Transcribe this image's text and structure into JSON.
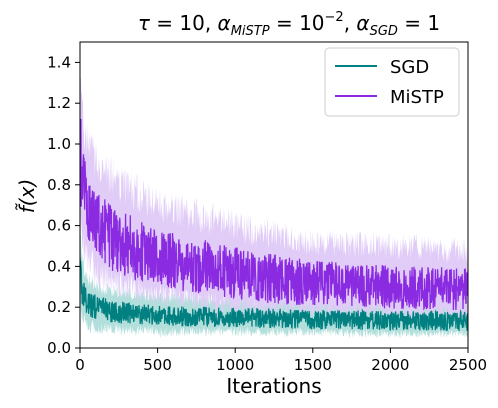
{
  "chart_data": {
    "type": "line",
    "title": "τ = 10, α_MiSTP = 10^−2, α_SGD = 1",
    "title_parts": {
      "tau": "τ",
      "eq": " = 10, ",
      "alpha": "α",
      "sub_mistp": "MiSTP",
      "eq2": " = 10",
      "exp": "−2",
      "comma": ", ",
      "sub_sgd": "SGD",
      "eq3": " = 1"
    },
    "xlabel": "Iterations",
    "ylabel": "f̃(x)",
    "xlim": [
      0,
      2500
    ],
    "ylim": [
      0,
      1.5
    ],
    "xticks": [
      0,
      500,
      1000,
      1500,
      2000,
      2500
    ],
    "yticks": [
      0.0,
      0.2,
      0.4,
      0.6,
      0.8,
      1.0,
      1.2,
      1.4
    ],
    "xtick_labels": [
      "0",
      "500",
      "1000",
      "1500",
      "2000",
      "2500"
    ],
    "ytick_labels": [
      "0.0",
      "0.2",
      "0.4",
      "0.6",
      "0.8",
      "1.0",
      "1.2",
      "1.4"
    ],
    "grid": false,
    "legend": {
      "position": "top-right",
      "entries": [
        "SGD",
        "MiSTP"
      ]
    },
    "series": [
      {
        "name": "SGD",
        "color": "#008080",
        "band_color": "#b2dfdb",
        "mean": {
          "x": [
            0,
            10,
            25,
            50,
            100,
            150,
            200,
            300,
            400,
            500,
            700,
            1000,
            1500,
            2000,
            2500
          ],
          "y": [
            0.48,
            0.3,
            0.25,
            0.22,
            0.2,
            0.19,
            0.18,
            0.17,
            0.165,
            0.16,
            0.155,
            0.15,
            0.14,
            0.135,
            0.13
          ]
        },
        "band": {
          "x": [
            0,
            10,
            25,
            50,
            100,
            200,
            500,
            1000,
            1500,
            2000,
            2500
          ],
          "lower": [
            0.25,
            0.17,
            0.13,
            0.11,
            0.1,
            0.09,
            0.08,
            0.08,
            0.075,
            0.07,
            0.07
          ],
          "upper": [
            0.62,
            0.45,
            0.38,
            0.34,
            0.31,
            0.28,
            0.25,
            0.24,
            0.23,
            0.22,
            0.22
          ]
        }
      },
      {
        "name": "MiSTP",
        "color": "#8a2be2",
        "band_color": "#e0ccf7",
        "mean": {
          "x": [
            0,
            10,
            25,
            50,
            100,
            150,
            200,
            300,
            400,
            500,
            700,
            1000,
            1200,
            1500,
            2000,
            2500
          ],
          "y": [
            1.05,
            0.85,
            0.78,
            0.7,
            0.62,
            0.58,
            0.54,
            0.5,
            0.47,
            0.44,
            0.41,
            0.37,
            0.34,
            0.32,
            0.3,
            0.29
          ]
        },
        "band": {
          "x": [
            0,
            10,
            25,
            50,
            100,
            200,
            500,
            1000,
            1500,
            2000,
            2500
          ],
          "lower": [
            0.6,
            0.55,
            0.5,
            0.44,
            0.38,
            0.32,
            0.26,
            0.2,
            0.18,
            0.17,
            0.16
          ],
          "upper": [
            1.45,
            1.2,
            1.08,
            1.0,
            0.92,
            0.84,
            0.7,
            0.6,
            0.52,
            0.5,
            0.48
          ]
        }
      }
    ]
  }
}
